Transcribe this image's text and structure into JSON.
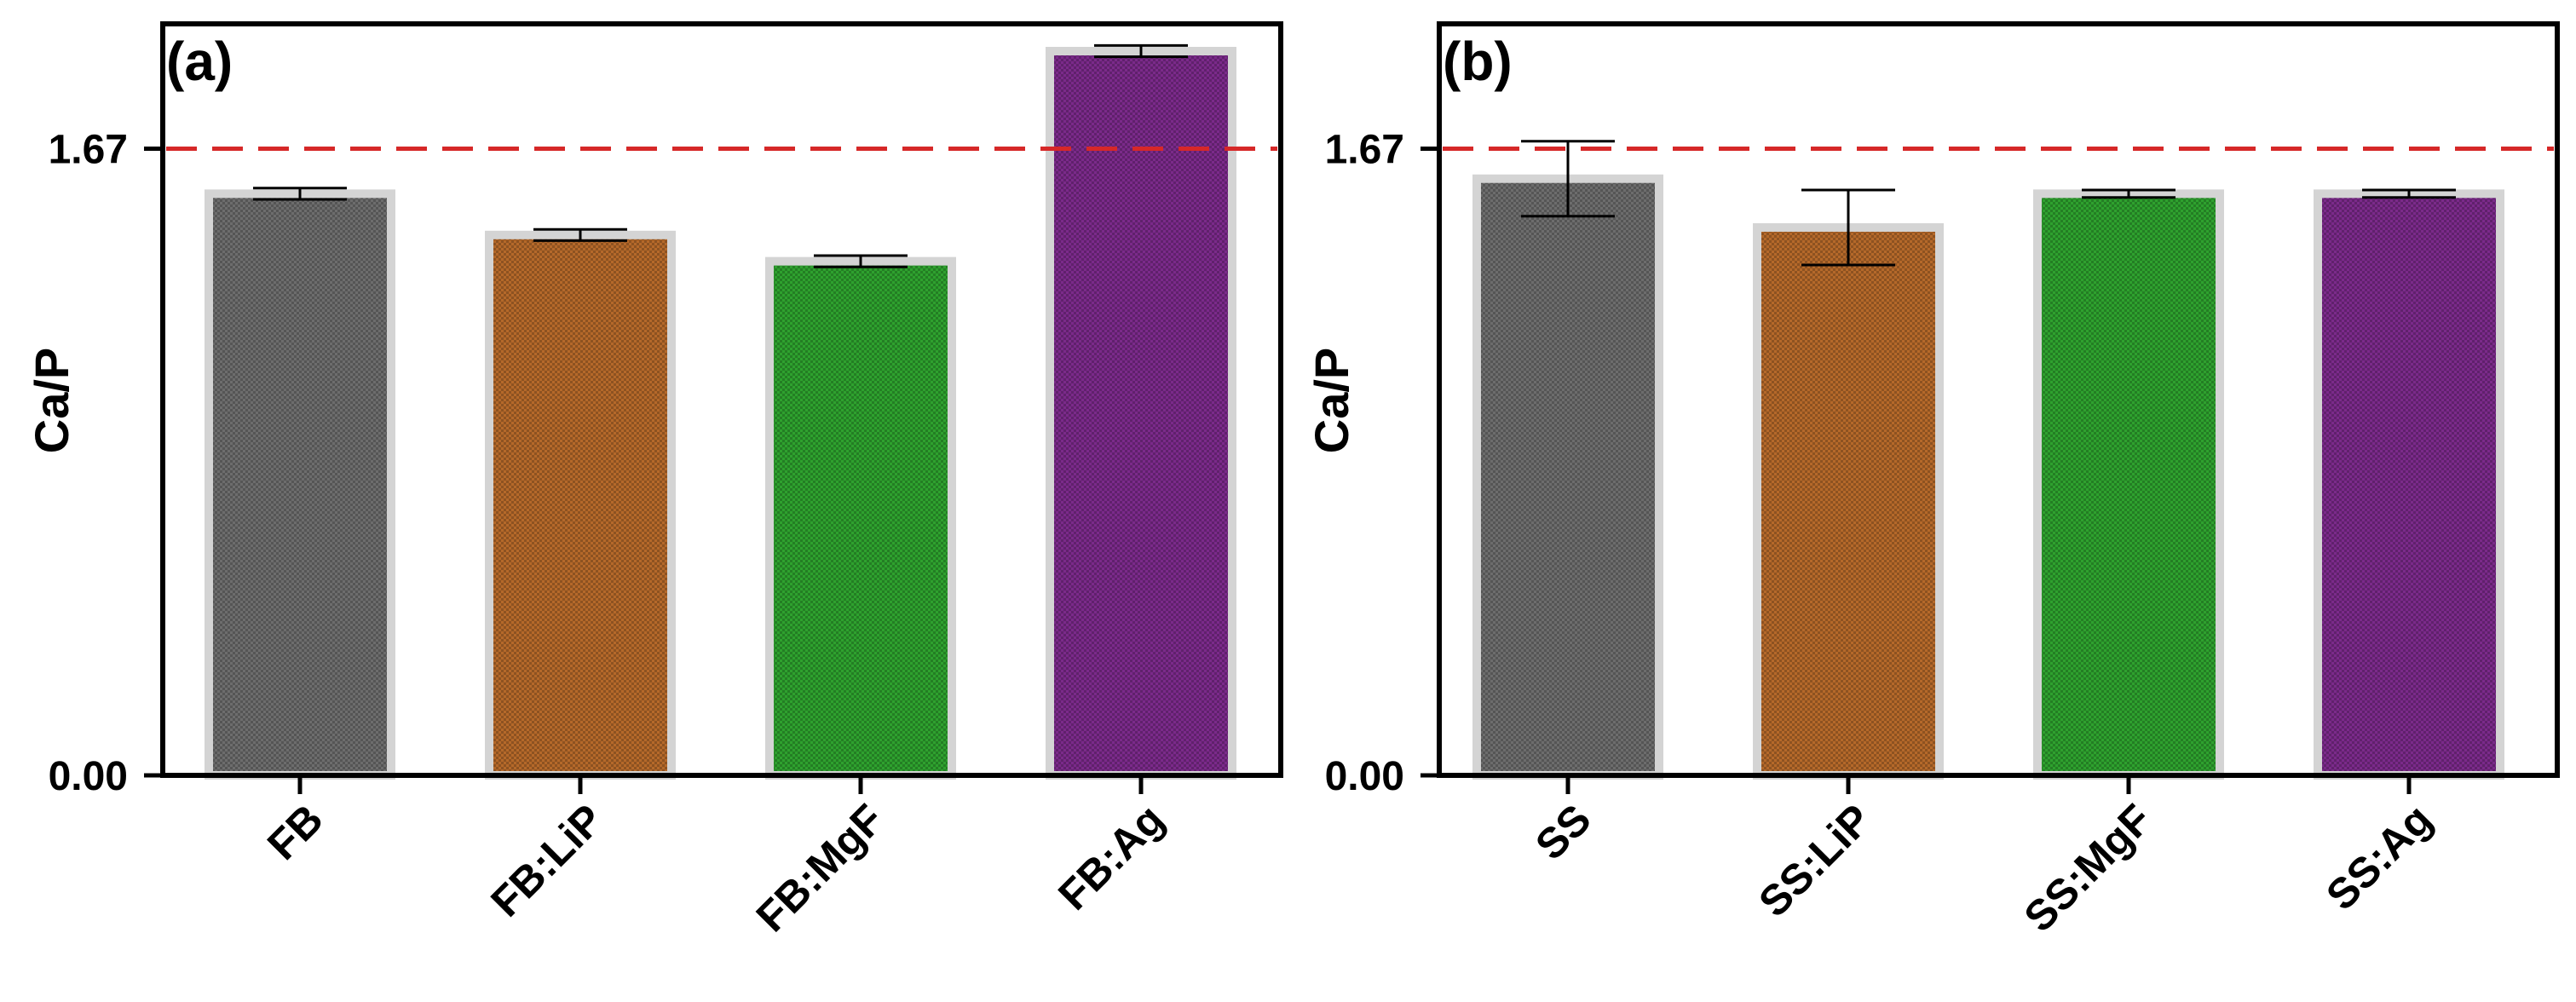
{
  "chart_data": [
    {
      "type": "bar",
      "panel_label": "(a)",
      "categories": [
        "FB",
        "FB:LiP",
        "FB:MgF",
        "FB:Ag"
      ],
      "values": [
        1.55,
        1.44,
        1.37,
        1.93
      ],
      "errors": [
        0.015,
        0.015,
        0.015,
        0.015
      ],
      "colors": [
        "#6d6d6d",
        "#b5692a",
        "#2ea12e",
        "#7b2a8a"
      ],
      "ylabel": "Ca/P",
      "xlabel": "",
      "ylim": [
        0,
        1.93
      ],
      "yticks": [
        0,
        1.67
      ],
      "ytick_labels": [
        "0.00",
        "1.67"
      ],
      "reference_line": {
        "value": 1.67,
        "color": "#d62828",
        "style": "dashed"
      }
    },
    {
      "type": "bar",
      "panel_label": "(b)",
      "categories": [
        "SS",
        "SS:LiP",
        "SS:MgF",
        "SS:Ag"
      ],
      "values": [
        1.59,
        1.46,
        1.55,
        1.55
      ],
      "errors": [
        0.1,
        0.1,
        0.01,
        0.01
      ],
      "colors": [
        "#6d6d6d",
        "#b5692a",
        "#2ea12e",
        "#7b2a8a"
      ],
      "ylabel": "Ca/P",
      "xlabel": "",
      "ylim": [
        0,
        1.93
      ],
      "yticks": [
        0,
        1.67
      ],
      "ytick_labels": [
        "0.00",
        "1.67"
      ],
      "reference_line": {
        "value": 1.67,
        "color": "#d62828",
        "style": "dashed"
      }
    }
  ]
}
